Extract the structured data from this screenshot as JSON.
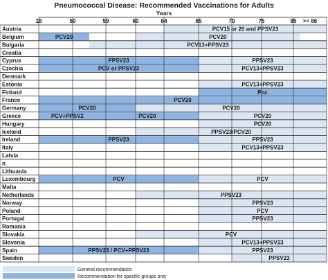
{
  "chart_data": {
    "type": "table",
    "title": "Pneumococcal Disease: Recommended Vaccinations for Adults",
    "xlabel": "Years",
    "x_ticks": [
      "18",
      "50",
      "59",
      "60",
      "64",
      "65",
      "70",
      "75",
      "85",
      ">= 86"
    ],
    "colors": {
      "general": "#dce6f2",
      "specific": "#8eb4e3",
      "line": "#1f1f1f"
    },
    "legend": [
      {
        "key": "general",
        "label": "General recommendation"
      },
      {
        "key": "specific",
        "label": "Recommendation for specific groups only"
      }
    ],
    "countries": [
      {
        "name": "Austria",
        "bars": [
          {
            "from": 4,
            "to": 10,
            "kind": "general",
            "label": "PCV15 or 20 and PPSV23"
          }
        ]
      },
      {
        "name": "Belgium",
        "bars": [
          {
            "from": 0,
            "to": 1.5,
            "kind": "specific",
            "label": "PCV20"
          },
          {
            "from": 3,
            "to": 8.2,
            "kind": "general",
            "label": "PCV20"
          }
        ]
      },
      {
        "name": "Bulgaria",
        "bars": [
          {
            "from": 1.5,
            "to": 10,
            "kind": "general",
            "label": "PCV13+PPSV23"
          }
        ]
      },
      {
        "name": "Croatia",
        "bars": []
      },
      {
        "name": "Cyprus",
        "bars": [
          {
            "from": 0,
            "to": 5,
            "kind": "specific",
            "label": "PPSV23"
          },
          {
            "from": 5,
            "to": 10,
            "kind": "general",
            "label": "PPSV23"
          }
        ]
      },
      {
        "name": "Czechia",
        "bars": [
          {
            "from": 0,
            "to": 5,
            "kind": "specific",
            "label": "PCV or PPSV23"
          },
          {
            "from": 5,
            "to": 10,
            "kind": "general",
            "label": "PCV13+PPSV23"
          }
        ]
      },
      {
        "name": "Denmark",
        "bars": []
      },
      {
        "name": "Estonia",
        "bars": [
          {
            "from": 5,
            "to": 10,
            "kind": "general",
            "label": "PCV13+PPSV23"
          }
        ]
      },
      {
        "name": "Finland",
        "bars": [
          {
            "from": 5,
            "to": 10,
            "kind": "specific",
            "label": "Pnc"
          }
        ]
      },
      {
        "name": "France",
        "bars": [
          {
            "from": 0,
            "to": 10,
            "kind": "specific",
            "label": "PCV20"
          }
        ]
      },
      {
        "name": "Germany",
        "bars": [
          {
            "from": 0,
            "to": 3,
            "kind": "specific",
            "label": "PCV20"
          },
          {
            "from": 3,
            "to": 10,
            "kind": "general",
            "label": "PCV20"
          }
        ]
      },
      {
        "name": "Greece",
        "bars": [
          {
            "from": 0,
            "to": 1.7,
            "kind": "specific",
            "label": "PCV+PPSV2"
          },
          {
            "from": 1.7,
            "to": 5,
            "kind": "specific",
            "label": "PCV20"
          },
          {
            "from": 5,
            "to": 10,
            "kind": "general",
            "label": "PCV20"
          }
        ]
      },
      {
        "name": "Hungary",
        "bars": [
          {
            "from": 5,
            "to": 10,
            "kind": "general",
            "label": "PCV20"
          }
        ]
      },
      {
        "name": "Iceland",
        "bars": [
          {
            "from": 3,
            "to": 10,
            "kind": "general",
            "label": "PPSV23/PCV20"
          }
        ]
      },
      {
        "name": "Ireland",
        "bars": [
          {
            "from": 0,
            "to": 5,
            "kind": "specific",
            "label": "PPSV23"
          },
          {
            "from": 5,
            "to": 10,
            "kind": "general",
            "label": "PPSV23"
          }
        ]
      },
      {
        "name": "Italy",
        "bars": [
          {
            "from": 5,
            "to": 10,
            "kind": "general",
            "label": "PCV13+PPSV23"
          }
        ]
      },
      {
        "name": "Latvia",
        "bars": []
      },
      {
        "name": "n",
        "bars": []
      },
      {
        "name": "Lithuania",
        "bars": []
      },
      {
        "name": "Luxembourg",
        "bars": [
          {
            "from": 0,
            "to": 5,
            "kind": "specific",
            "label": "PCV"
          },
          {
            "from": 5,
            "to": 10,
            "kind": "general",
            "label": "PCV"
          }
        ]
      },
      {
        "name": "Malta",
        "bars": []
      },
      {
        "name": "Netherlands",
        "bars": [
          {
            "from": 3,
            "to": 10,
            "kind": "general",
            "label": "PPSV23"
          }
        ]
      },
      {
        "name": "Norway",
        "bars": [
          {
            "from": 5,
            "to": 10,
            "kind": "general",
            "label": "PPSV23"
          }
        ]
      },
      {
        "name": "Poland",
        "bars": [
          {
            "from": 5,
            "to": 10,
            "kind": "general",
            "label": "PCV"
          }
        ]
      },
      {
        "name": "Portugal",
        "bars": [
          {
            "from": 5,
            "to": 10,
            "kind": "general",
            "label": "PPSV23"
          }
        ]
      },
      {
        "name": "Romania",
        "bars": []
      },
      {
        "name": "Slovakia",
        "bars": [
          {
            "from": 3,
            "to": 10,
            "kind": "general",
            "label": "PCV"
          }
        ]
      },
      {
        "name": "Slovenia",
        "bars": [
          {
            "from": 5,
            "to": 10,
            "kind": "general",
            "label": "PCV13+PPSV23"
          }
        ]
      },
      {
        "name": "Spain",
        "bars": [
          {
            "from": 0,
            "to": 5,
            "kind": "specific",
            "label": "PPSV23 /  PCV+PPSV23"
          },
          {
            "from": 5,
            "to": 10,
            "kind": "general",
            "label": "PPSV23"
          }
        ]
      },
      {
        "name": "Sweden",
        "bars": [
          {
            "from": 6,
            "to": 10,
            "kind": "general",
            "label": "PPSV23"
          }
        ]
      }
    ]
  }
}
